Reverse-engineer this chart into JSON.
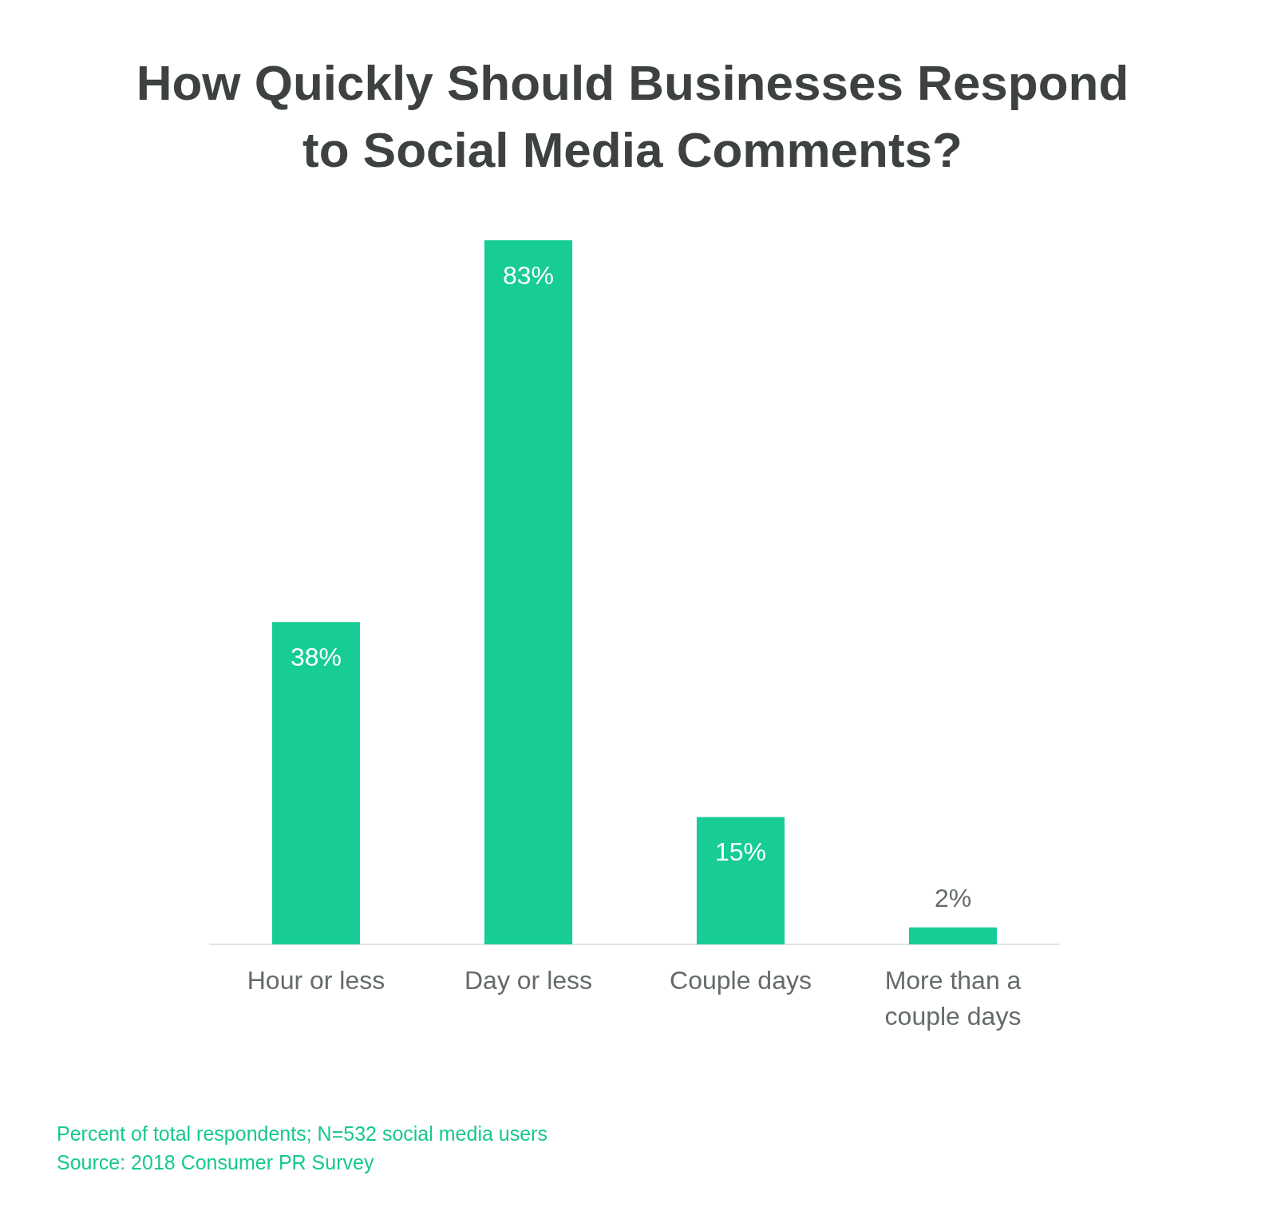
{
  "chart_data": {
    "type": "bar",
    "title": "How Quickly Should Businesses Respond to Social Media Comments?",
    "categories": [
      "Hour or less",
      "Day or less",
      "Couple days",
      "More than a couple days"
    ],
    "values": [
      38,
      83,
      15,
      2
    ],
    "value_labels": [
      "38%",
      "83%",
      "15%",
      "2%"
    ],
    "color": "#17cc95",
    "annotations": [
      "Percent of total respondents; N=532 social media users",
      "Source: 2018 Consumer PR Survey"
    ]
  }
}
